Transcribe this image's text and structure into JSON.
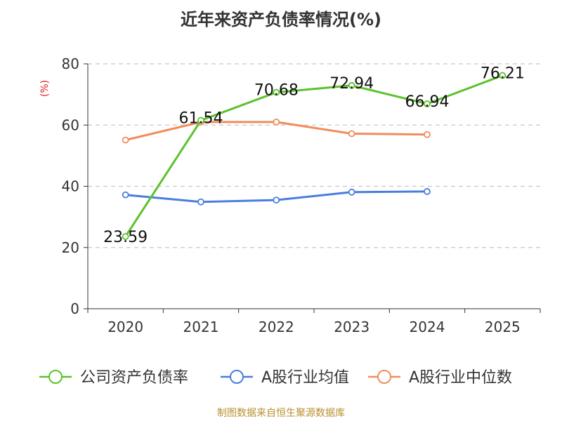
{
  "title": "近年来资产负债率情况(%)",
  "source": "制图数据来自恒生聚源数据库",
  "chart_data": {
    "type": "line",
    "title": "近年来资产负债率情况(%)",
    "ylabel": "(%)",
    "categories": [
      "2020",
      "2021",
      "2022",
      "2023",
      "2024",
      "2025"
    ],
    "ylim": [
      0,
      80
    ],
    "yticks": [
      0,
      20,
      40,
      60,
      80
    ],
    "grid": true,
    "legend": "bottom",
    "series": [
      {
        "name": "公司资产负债率",
        "color": "#5cc22c",
        "values": [
          23.59,
          61.54,
          70.68,
          72.94,
          66.94,
          76.21
        ],
        "labels": [
          "23.59",
          "61.54",
          "70.68",
          "72.94",
          "66.94",
          "76.21"
        ]
      },
      {
        "name": "A股行业均值",
        "color": "#4a7ede",
        "values": [
          37.2,
          34.9,
          35.5,
          38.1,
          38.3,
          null
        ]
      },
      {
        "name": "A股行业中位数",
        "color": "#f28c5c",
        "values": [
          55.1,
          61.0,
          61.0,
          57.2,
          56.9,
          null
        ]
      }
    ]
  }
}
